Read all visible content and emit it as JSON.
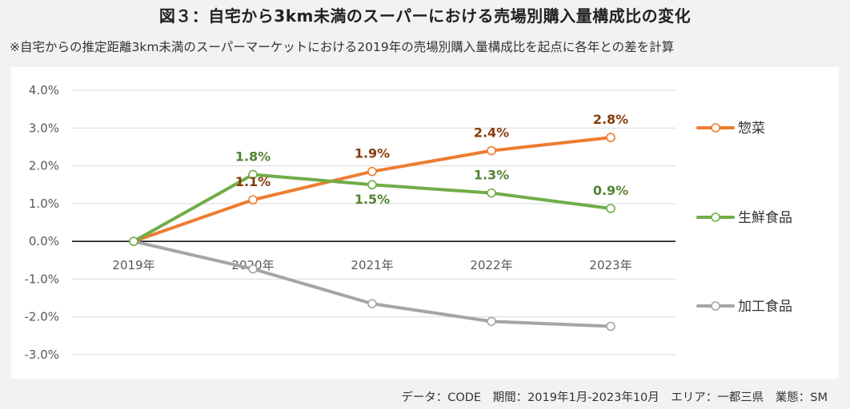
{
  "title": "図３：自宅から3km未満のスーパーにおける売場別購入量構成比の変化",
  "subtitle": "※自宅からの推定距離3km未満のスーパーマーケットにおける2019年の売場別購入量構成比を起点に各年との差を計算",
  "footer": "データ：CODE　期間：2019年1月-2023年10月　エリア：一都三県　業態：SM",
  "colors": {
    "souzai": "#ed7d31",
    "souzai_label": "#843c0c",
    "sensen": "#70ad47",
    "sensen_label": "#548235",
    "kakou": "#a5a5a5",
    "grid": "#d9d9d9",
    "zero": "#000000",
    "axis_text": "#595959"
  },
  "chart_data": {
    "type": "line",
    "title": "図３：自宅から3km未満のスーパーにおける売場別購入量構成比の変化",
    "xlabel": "",
    "ylabel": "",
    "categories": [
      "2019年",
      "2020年",
      "2021年",
      "2022年",
      "2023年"
    ],
    "ylim": [
      -3.0,
      4.0
    ],
    "yticks": [
      4.0,
      3.0,
      2.0,
      1.0,
      0.0,
      -1.0,
      -2.0,
      -3.0
    ],
    "ytick_labels": [
      "4.0%",
      "3.0%",
      "2.0%",
      "1.0%",
      "0.0%",
      "-1.0%",
      "-2.0%",
      "-3.0%"
    ],
    "grid": true,
    "legend_position": "right",
    "series": [
      {
        "name": "惣菜",
        "key": "souzai",
        "values": [
          0.0,
          1.1,
          1.85,
          2.4,
          2.75
        ],
        "labels": [
          "",
          "1.1%",
          "1.9%",
          "2.4%",
          "2.8%"
        ],
        "label_pos": [
          "",
          "above",
          "above",
          "above",
          "above"
        ]
      },
      {
        "name": "生鮮食品",
        "key": "sensen",
        "values": [
          0.0,
          1.77,
          1.5,
          1.28,
          0.87
        ],
        "labels": [
          "",
          "1.8%",
          "1.5%",
          "1.3%",
          "0.9%"
        ],
        "label_pos": [
          "",
          "above",
          "below",
          "above",
          "above"
        ]
      },
      {
        "name": "加工食品",
        "key": "kakou",
        "values": [
          0.0,
          -0.73,
          -1.65,
          -2.12,
          -2.25
        ],
        "labels": [
          "",
          "",
          "",
          "",
          ""
        ],
        "label_pos": [
          "",
          "",
          "",
          "",
          ""
        ]
      }
    ]
  }
}
